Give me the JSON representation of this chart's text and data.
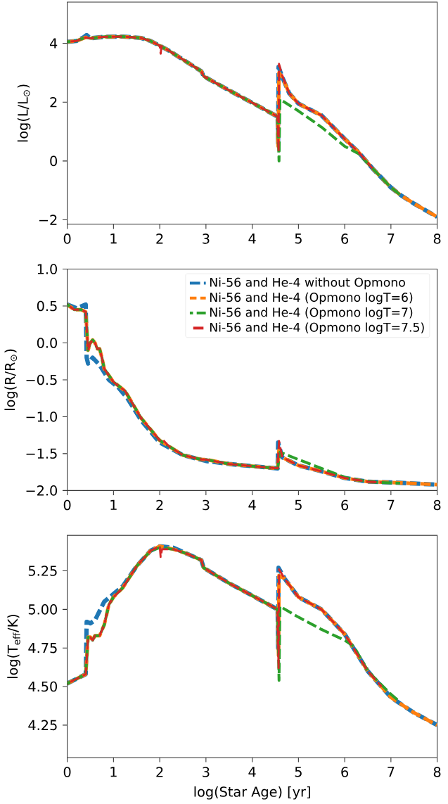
{
  "chart_data": [
    {
      "type": "line",
      "ylabel": "log(L/L$_{⊙}$)",
      "xlim": [
        0,
        8
      ],
      "ylim": [
        -2.15,
        5.4
      ],
      "xticks": [
        0,
        1,
        2,
        3,
        4,
        5,
        6,
        7,
        8
      ],
      "yticks": [
        {
          "value": -2,
          "label": "−2"
        },
        0,
        2,
        4
      ],
      "line_style": "dashed",
      "grid": false,
      "series": [
        {
          "color": "#1f77b4",
          "x": [
            0,
            0.2,
            0.35,
            0.42,
            0.5,
            0.8,
            1.2,
            1.6,
            1.8,
            2.0,
            2.2,
            2.5,
            2.9,
            2.95,
            3.5,
            4.0,
            4.5,
            4.55,
            4.56,
            4.57,
            4.65,
            4.8,
            5.0,
            5.5,
            6.0,
            6.3,
            6.6,
            7.0,
            7.2,
            7.5,
            8.0
          ],
          "values": [
            4.05,
            4.08,
            4.2,
            4.28,
            4.17,
            4.22,
            4.23,
            4.18,
            4.08,
            3.92,
            3.75,
            3.45,
            3.05,
            2.88,
            2.4,
            1.98,
            1.55,
            1.5,
            0.6,
            3.2,
            2.85,
            2.3,
            1.95,
            1.55,
            0.75,
            0.3,
            -0.25,
            -0.9,
            -1.15,
            -1.45,
            -1.9
          ]
        },
        {
          "color": "#ff7f0e",
          "x": [
            0,
            0.2,
            0.4,
            0.5,
            0.8,
            1.2,
            1.6,
            1.8,
            2.0,
            2.2,
            2.5,
            2.9,
            2.95,
            3.5,
            4.0,
            4.5,
            4.55,
            4.56,
            4.58,
            4.65,
            4.8,
            5.0,
            5.5,
            6.0,
            6.3,
            6.6,
            7.0,
            7.2,
            7.5,
            8.0
          ],
          "values": [
            4.05,
            4.08,
            4.2,
            4.17,
            4.22,
            4.23,
            4.18,
            4.08,
            3.92,
            3.75,
            3.45,
            3.05,
            2.88,
            2.4,
            1.98,
            1.55,
            1.5,
            0.5,
            3.0,
            2.85,
            2.3,
            1.95,
            1.55,
            0.75,
            0.3,
            -0.25,
            -0.9,
            -1.15,
            -1.45,
            -1.9
          ]
        },
        {
          "color": "#2ca02c",
          "x": [
            0,
            0.2,
            0.4,
            0.5,
            0.8,
            1.2,
            1.6,
            1.8,
            2.0,
            2.2,
            2.5,
            2.9,
            2.95,
            3.5,
            4.0,
            4.5,
            4.55,
            4.58,
            4.6,
            5.0,
            5.5,
            6.0,
            6.3,
            6.6,
            7.0,
            7.2
          ],
          "values": [
            4.05,
            4.08,
            4.2,
            4.17,
            4.22,
            4.23,
            4.18,
            4.08,
            3.92,
            3.75,
            3.45,
            3.05,
            2.88,
            2.4,
            1.98,
            1.55,
            1.5,
            0.0,
            2.1,
            1.7,
            1.15,
            0.5,
            0.25,
            -0.25,
            -0.9,
            -1.15
          ]
        },
        {
          "color": "#d62728",
          "x": [
            0,
            0.2,
            0.4,
            0.5,
            0.8,
            1.2,
            1.6,
            1.8,
            2.0,
            2.02,
            2.04,
            2.2,
            2.5,
            2.9,
            2.95,
            3.5,
            4.0,
            4.5,
            4.55,
            4.57,
            4.58,
            4.65,
            4.8,
            5.0,
            5.5,
            6.0,
            6.3,
            6.6
          ],
          "values": [
            4.05,
            4.08,
            4.2,
            4.17,
            4.22,
            4.23,
            4.18,
            4.08,
            3.92,
            3.65,
            3.9,
            3.75,
            3.45,
            3.05,
            2.88,
            2.4,
            1.98,
            1.55,
            1.5,
            0.3,
            3.3,
            2.9,
            2.3,
            1.95,
            1.55,
            0.75,
            0.3,
            -0.25
          ]
        }
      ]
    },
    {
      "type": "line",
      "ylabel": "log(R/R$_{⊙}$)",
      "xlim": [
        0,
        8
      ],
      "ylim": [
        -2,
        1
      ],
      "xticks": [
        0,
        1,
        2,
        3,
        4,
        5,
        6,
        7,
        8
      ],
      "yticks": [
        {
          "value": -2,
          "label": "−2.0"
        },
        {
          "value": -1.5,
          "label": "−1.5"
        },
        {
          "value": -1,
          "label": "−1.0"
        },
        {
          "value": -0.5,
          "label": "−0.5"
        },
        {
          "value": 0,
          "label": "0.0"
        },
        0.5,
        {
          "value": 1,
          "label": "1.0"
        }
      ],
      "line_style": "dashed",
      "grid": false,
      "legend": "top right",
      "series": [
        {
          "name": "Ni-56 and He-4 without Opmono",
          "color": "#1f77b4",
          "x": [
            0,
            0.2,
            0.4,
            0.42,
            0.45,
            0.55,
            0.7,
            0.9,
            1.1,
            1.3,
            1.6,
            2.0,
            2.5,
            3.0,
            3.5,
            4.0,
            4.55,
            4.56,
            4.65,
            5.0,
            5.5,
            6.0,
            6.5,
            7.0,
            8.0
          ],
          "values": [
            0.52,
            0.47,
            0.52,
            -0.2,
            -0.28,
            -0.2,
            -0.3,
            -0.5,
            -0.6,
            -0.75,
            -1.05,
            -1.35,
            -1.52,
            -1.6,
            -1.64,
            -1.67,
            -1.7,
            -1.35,
            -1.55,
            -1.66,
            -1.74,
            -1.83,
            -1.88,
            -1.89,
            -1.92
          ]
        },
        {
          "name": "Ni-56 and He-4 (Opmono logT=6)",
          "color": "#ff7f0e",
          "x": [
            0,
            0.15,
            0.3,
            0.4,
            0.45,
            0.5,
            0.55,
            0.6,
            0.65,
            0.7,
            0.75,
            0.8,
            1.0,
            1.25,
            1.6,
            2.0,
            2.2,
            2.5,
            2.9,
            3.0,
            3.5,
            4.0,
            4.55,
            4.58,
            4.65,
            5.0,
            5.5,
            6.0,
            6.5,
            7.0,
            8.0
          ],
          "values": [
            0.52,
            0.45,
            0.45,
            0.42,
            -0.1,
            0.0,
            0.04,
            0.0,
            -0.08,
            -0.08,
            -0.2,
            -0.35,
            -0.53,
            -0.65,
            -1.02,
            -1.32,
            -1.4,
            -1.52,
            -1.58,
            -1.58,
            -1.64,
            -1.67,
            -1.7,
            -1.45,
            -1.55,
            -1.66,
            -1.74,
            -1.83,
            -1.88,
            -1.89,
            -1.92
          ]
        },
        {
          "name": "Ni-56 and He-4 (Opmono logT=7)",
          "color": "#2ca02c",
          "x": [
            0,
            0.15,
            0.3,
            0.4,
            0.45,
            0.5,
            0.55,
            0.6,
            0.65,
            0.7,
            0.75,
            0.8,
            1.0,
            1.25,
            1.6,
            2.0,
            2.2,
            2.5,
            2.9,
            3.0,
            3.5,
            4.0,
            4.55,
            4.6,
            5.0,
            5.5,
            6.0,
            6.3,
            6.7,
            7.2
          ],
          "values": [
            0.52,
            0.45,
            0.45,
            0.42,
            -0.1,
            0.0,
            0.04,
            0.0,
            -0.08,
            -0.08,
            -0.2,
            -0.35,
            -0.53,
            -0.65,
            -1.02,
            -1.32,
            -1.4,
            -1.52,
            -1.58,
            -1.58,
            -1.64,
            -1.67,
            -1.7,
            -1.48,
            -1.58,
            -1.7,
            -1.82,
            -1.86,
            -1.89,
            -1.9
          ]
        },
        {
          "name": "Ni-56 and He-4 (Opmono logT=7.5)",
          "color": "#d62728",
          "x": [
            0,
            0.15,
            0.3,
            0.4,
            0.45,
            0.5,
            0.55,
            0.6,
            0.65,
            0.7,
            0.75,
            0.8,
            1.0,
            1.25,
            1.6,
            2.0,
            2.05,
            2.2,
            2.5,
            2.9,
            3.0,
            3.5,
            4.0,
            4.55,
            4.58,
            4.65,
            5.0,
            5.5,
            6.0,
            6.5,
            6.8
          ],
          "values": [
            0.52,
            0.45,
            0.45,
            0.42,
            -0.1,
            0.0,
            0.04,
            0.0,
            -0.08,
            -0.08,
            -0.2,
            -0.35,
            -0.53,
            -0.65,
            -1.02,
            -1.32,
            -1.3,
            -1.4,
            -1.52,
            -1.58,
            -1.58,
            -1.64,
            -1.67,
            -1.7,
            -1.33,
            -1.55,
            -1.66,
            -1.74,
            -1.83,
            -1.88,
            -1.89
          ]
        }
      ]
    },
    {
      "type": "line",
      "xlabel": "log(Star Age) [yr]",
      "ylabel": "log(T$_{eff}$/K)",
      "xlim": [
        0,
        8
      ],
      "ylim": [
        4.04,
        5.48
      ],
      "xticks": [
        0,
        1,
        2,
        3,
        4,
        5,
        6,
        7,
        8
      ],
      "yticks": [
        4.25,
        {
          "value": 4.5,
          "label": "4.50"
        },
        4.75,
        {
          "value": 5,
          "label": "5.00"
        },
        5.25
      ],
      "line_style": "dashed",
      "grid": false,
      "series": [
        {
          "color": "#1f77b4",
          "x": [
            0,
            0.2,
            0.4,
            0.42,
            0.5,
            0.6,
            0.8,
            1.0,
            1.2,
            1.5,
            1.8,
            2.0,
            2.3,
            2.6,
            2.9,
            2.95,
            3.5,
            4.0,
            4.55,
            4.56,
            4.57,
            4.7,
            5.0,
            5.5,
            6.0,
            6.5,
            7.0,
            7.5,
            8.0
          ],
          "values": [
            4.52,
            4.55,
            4.58,
            4.92,
            4.91,
            4.93,
            5.05,
            5.1,
            5.15,
            5.28,
            5.38,
            5.41,
            5.4,
            5.36,
            5.32,
            5.27,
            5.17,
            5.09,
            5.0,
            4.75,
            5.27,
            5.2,
            5.08,
            5.0,
            4.84,
            4.6,
            4.43,
            4.33,
            4.25
          ]
        },
        {
          "color": "#ff7f0e",
          "x": [
            0,
            0.4,
            0.45,
            0.5,
            0.55,
            0.6,
            0.7,
            0.8,
            0.9,
            1.0,
            1.2,
            1.5,
            1.8,
            2.0,
            2.3,
            2.6,
            2.9,
            2.95,
            3.5,
            4.0,
            4.55,
            4.57,
            4.58,
            4.7,
            5.0,
            5.5,
            6.0,
            6.5,
            7.0,
            7.5,
            8.0
          ],
          "values": [
            4.52,
            4.58,
            4.82,
            4.82,
            4.8,
            4.83,
            4.83,
            4.9,
            5.03,
            5.08,
            5.14,
            5.28,
            5.38,
            5.41,
            5.39,
            5.36,
            5.32,
            5.27,
            5.17,
            5.09,
            5.0,
            4.7,
            5.22,
            5.2,
            5.08,
            5.0,
            4.84,
            4.6,
            4.43,
            4.33,
            4.25
          ]
        },
        {
          "color": "#2ca02c",
          "x": [
            0,
            0.4,
            0.45,
            0.5,
            0.55,
            0.6,
            0.7,
            0.8,
            0.9,
            1.0,
            1.2,
            1.5,
            1.8,
            2.0,
            2.3,
            2.6,
            2.9,
            2.95,
            3.5,
            4.0,
            4.55,
            4.58,
            4.6,
            5.0,
            5.5,
            6.0,
            6.2,
            6.5,
            7.0,
            7.2
          ],
          "values": [
            4.52,
            4.58,
            4.82,
            4.82,
            4.8,
            4.83,
            4.83,
            4.9,
            5.03,
            5.08,
            5.14,
            5.28,
            5.38,
            5.4,
            5.39,
            5.36,
            5.32,
            5.27,
            5.17,
            5.09,
            5.0,
            4.54,
            5.02,
            4.95,
            4.87,
            4.8,
            4.76,
            4.6,
            4.45,
            4.4
          ]
        },
        {
          "color": "#d62728",
          "x": [
            0,
            0.4,
            0.45,
            0.5,
            0.55,
            0.6,
            0.7,
            0.8,
            0.9,
            1.0,
            1.2,
            1.5,
            1.8,
            2.0,
            2.02,
            2.05,
            2.3,
            2.6,
            2.9,
            2.95,
            3.5,
            4.0,
            4.55,
            4.57,
            4.58,
            4.7,
            5.0,
            5.5,
            6.0,
            6.5,
            6.8
          ],
          "values": [
            4.52,
            4.58,
            4.82,
            4.82,
            4.8,
            4.83,
            4.83,
            4.9,
            5.03,
            5.08,
            5.14,
            5.28,
            5.38,
            5.41,
            5.34,
            5.39,
            5.39,
            5.36,
            5.32,
            5.27,
            5.17,
            5.09,
            5.0,
            4.62,
            5.26,
            5.2,
            5.08,
            5.0,
            4.84,
            4.6,
            4.5
          ]
        }
      ]
    }
  ]
}
